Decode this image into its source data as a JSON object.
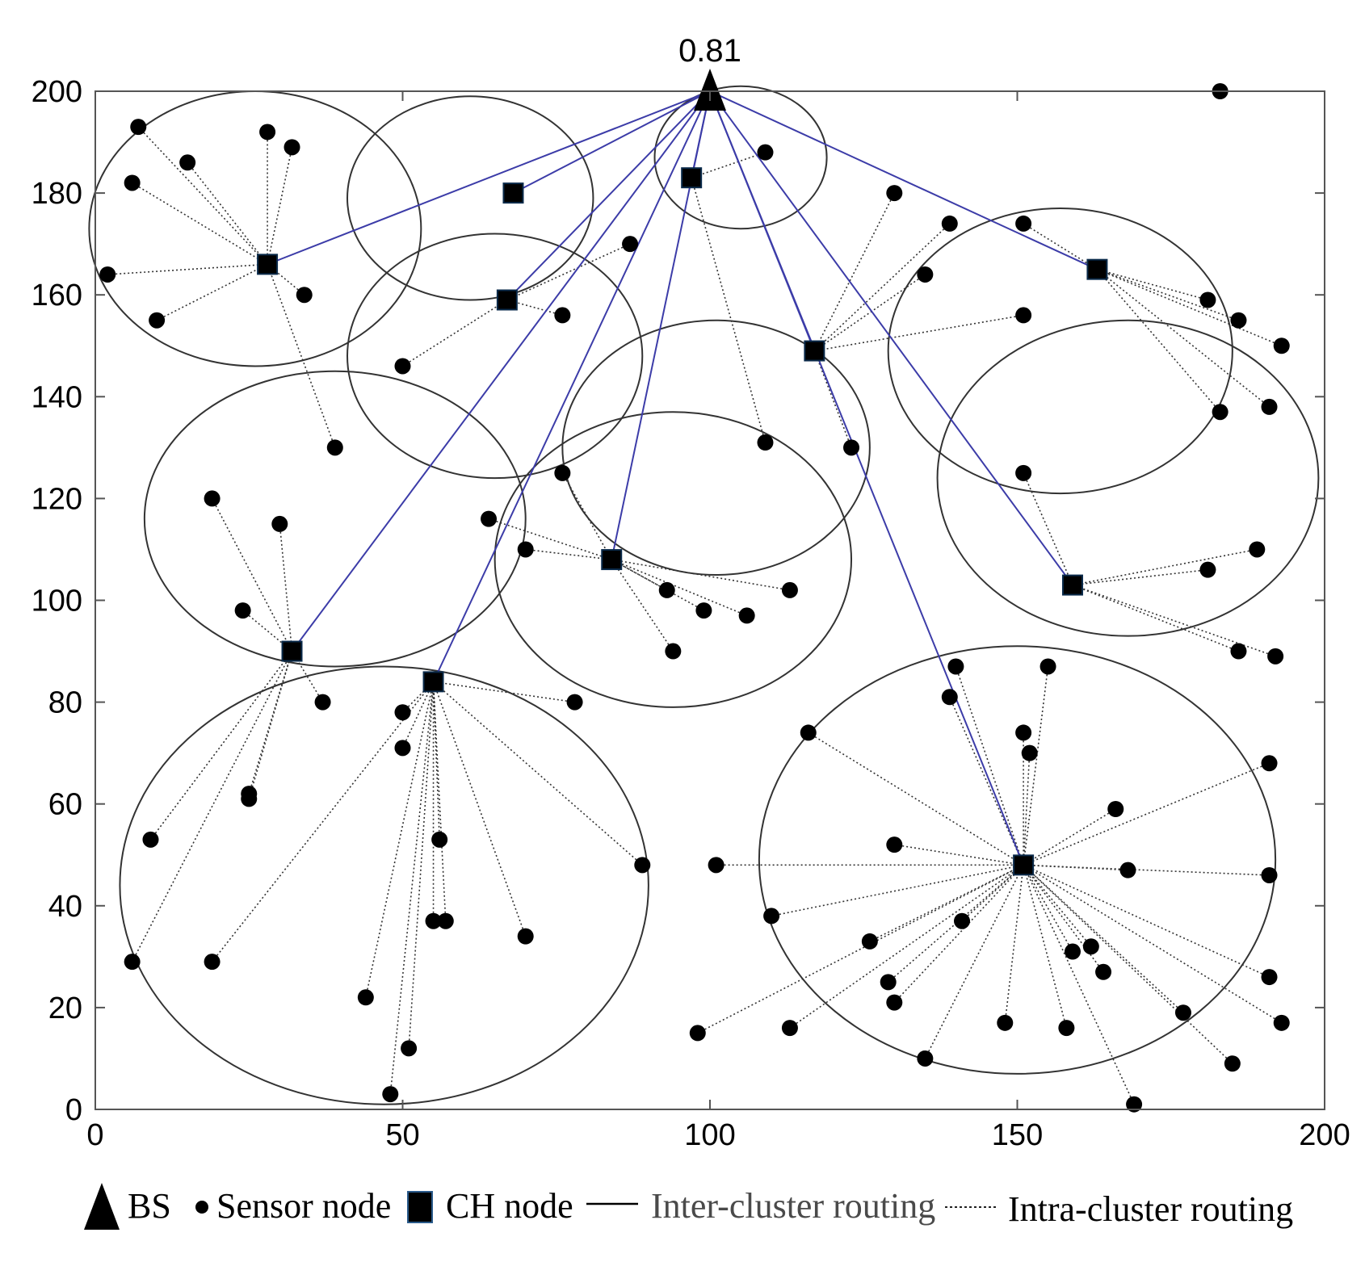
{
  "chart_data": {
    "type": "scatter",
    "title": "",
    "xlabel": "",
    "ylabel": "",
    "xlim": [
      0,
      200
    ],
    "ylim": [
      0,
      200
    ],
    "xticks": [
      "0",
      "50",
      "100",
      "150",
      "200"
    ],
    "yticks": [
      "0",
      "20",
      "40",
      "60",
      "80",
      "100",
      "120",
      "140",
      "160",
      "180",
      "200"
    ],
    "grid": false,
    "base_station": {
      "x": 100,
      "y": 200,
      "label": "0.81"
    },
    "cluster_heads": [
      {
        "x": 28,
        "y": 166
      },
      {
        "x": 68,
        "y": 180
      },
      {
        "x": 67,
        "y": 159
      },
      {
        "x": 97,
        "y": 183
      },
      {
        "x": 32,
        "y": 90
      },
      {
        "x": 55,
        "y": 84
      },
      {
        "x": 84,
        "y": 108
      },
      {
        "x": 117,
        "y": 149
      },
      {
        "x": 163,
        "y": 165
      },
      {
        "x": 159,
        "y": 103
      },
      {
        "x": 151,
        "y": 48
      }
    ],
    "clusters": [
      {
        "cx": 26,
        "cy": 173,
        "rx": 27,
        "ry": 27
      },
      {
        "cx": 61,
        "cy": 179,
        "rx": 20,
        "ry": 20
      },
      {
        "cx": 65,
        "cy": 148,
        "rx": 24,
        "ry": 24
      },
      {
        "cx": 105,
        "cy": 187,
        "rx": 14,
        "ry": 14
      },
      {
        "cx": 39,
        "cy": 116,
        "rx": 31,
        "ry": 29
      },
      {
        "cx": 101,
        "cy": 130,
        "rx": 25,
        "ry": 25
      },
      {
        "cx": 94,
        "cy": 108,
        "rx": 29,
        "ry": 29
      },
      {
        "cx": 157,
        "cy": 149,
        "rx": 28,
        "ry": 28
      },
      {
        "cx": 168,
        "cy": 124,
        "rx": 31,
        "ry": 31
      },
      {
        "cx": 47,
        "cy": 44,
        "rx": 43,
        "ry": 43
      },
      {
        "cx": 150,
        "cy": 49,
        "rx": 42,
        "ry": 42
      }
    ],
    "sensor_nodes": [
      {
        "x": 7,
        "y": 193,
        "ch": 0
      },
      {
        "x": 28,
        "y": 192,
        "ch": 0
      },
      {
        "x": 32,
        "y": 189,
        "ch": 0
      },
      {
        "x": 15,
        "y": 186,
        "ch": 0
      },
      {
        "x": 6,
        "y": 182,
        "ch": 0
      },
      {
        "x": 2,
        "y": 164,
        "ch": 0
      },
      {
        "x": 34,
        "y": 160,
        "ch": 0
      },
      {
        "x": 10,
        "y": 155,
        "ch": 0
      },
      {
        "x": 39,
        "y": 130,
        "ch": 0
      },
      {
        "x": 87,
        "y": 170,
        "ch": 2
      },
      {
        "x": 76,
        "y": 156,
        "ch": 2
      },
      {
        "x": 50,
        "y": 146,
        "ch": 2
      },
      {
        "x": 109,
        "y": 188,
        "ch": 3
      },
      {
        "x": 109,
        "y": 131,
        "ch": 3
      },
      {
        "x": 19,
        "y": 120,
        "ch": 4
      },
      {
        "x": 30,
        "y": 115,
        "ch": 4
      },
      {
        "x": 24,
        "y": 98,
        "ch": 4
      },
      {
        "x": 37,
        "y": 80,
        "ch": 4
      },
      {
        "x": 25,
        "y": 62,
        "ch": 4
      },
      {
        "x": 25,
        "y": 61,
        "ch": 4
      },
      {
        "x": 9,
        "y": 53,
        "ch": 4
      },
      {
        "x": 6,
        "y": 29,
        "ch": 4
      },
      {
        "x": 50,
        "y": 78,
        "ch": 5
      },
      {
        "x": 50,
        "y": 71,
        "ch": 5
      },
      {
        "x": 56,
        "y": 53,
        "ch": 5
      },
      {
        "x": 55,
        "y": 37,
        "ch": 5
      },
      {
        "x": 57,
        "y": 37,
        "ch": 5
      },
      {
        "x": 44,
        "y": 22,
        "ch": 5
      },
      {
        "x": 51,
        "y": 12,
        "ch": 5
      },
      {
        "x": 48,
        "y": 3,
        "ch": 5
      },
      {
        "x": 70,
        "y": 34,
        "ch": 5
      },
      {
        "x": 89,
        "y": 48,
        "ch": 5
      },
      {
        "x": 78,
        "y": 80,
        "ch": 5
      },
      {
        "x": 19,
        "y": 29,
        "ch": 5
      },
      {
        "x": 64,
        "y": 116,
        "ch": 6
      },
      {
        "x": 70,
        "y": 110,
        "ch": 6
      },
      {
        "x": 76,
        "y": 125,
        "ch": 6
      },
      {
        "x": 93,
        "y": 102,
        "ch": 6
      },
      {
        "x": 99,
        "y": 98,
        "ch": 6
      },
      {
        "x": 106,
        "y": 97,
        "ch": 6
      },
      {
        "x": 113,
        "y": 102,
        "ch": 6
      },
      {
        "x": 94,
        "y": 90,
        "ch": 6
      },
      {
        "x": 130,
        "y": 180,
        "ch": 7
      },
      {
        "x": 139,
        "y": 174,
        "ch": 7
      },
      {
        "x": 135,
        "y": 164,
        "ch": 7
      },
      {
        "x": 151,
        "y": 156,
        "ch": 7
      },
      {
        "x": 123,
        "y": 130,
        "ch": 7
      },
      {
        "x": 183,
        "y": 200,
        "ch": -1
      },
      {
        "x": 151,
        "y": 174,
        "ch": 8
      },
      {
        "x": 181,
        "y": 159,
        "ch": 8
      },
      {
        "x": 186,
        "y": 155,
        "ch": 8
      },
      {
        "x": 193,
        "y": 150,
        "ch": 8
      },
      {
        "x": 183,
        "y": 137,
        "ch": 8
      },
      {
        "x": 191,
        "y": 138,
        "ch": 8
      },
      {
        "x": 151,
        "y": 125,
        "ch": 9
      },
      {
        "x": 189,
        "y": 110,
        "ch": 9
      },
      {
        "x": 181,
        "y": 106,
        "ch": 9
      },
      {
        "x": 186,
        "y": 90,
        "ch": 9
      },
      {
        "x": 192,
        "y": 89,
        "ch": 9
      },
      {
        "x": 140,
        "y": 87,
        "ch": 10
      },
      {
        "x": 155,
        "y": 87,
        "ch": 10
      },
      {
        "x": 139,
        "y": 81,
        "ch": 10
      },
      {
        "x": 116,
        "y": 74,
        "ch": 10
      },
      {
        "x": 151,
        "y": 74,
        "ch": 10
      },
      {
        "x": 152,
        "y": 70,
        "ch": 10
      },
      {
        "x": 191,
        "y": 68,
        "ch": 10
      },
      {
        "x": 166,
        "y": 59,
        "ch": 10
      },
      {
        "x": 130,
        "y": 52,
        "ch": 10
      },
      {
        "x": 101,
        "y": 48,
        "ch": 10
      },
      {
        "x": 168,
        "y": 47,
        "ch": 10
      },
      {
        "x": 191,
        "y": 46,
        "ch": 10
      },
      {
        "x": 110,
        "y": 38,
        "ch": 10
      },
      {
        "x": 141,
        "y": 37,
        "ch": 10
      },
      {
        "x": 126,
        "y": 33,
        "ch": 10
      },
      {
        "x": 162,
        "y": 32,
        "ch": 10
      },
      {
        "x": 159,
        "y": 31,
        "ch": 10
      },
      {
        "x": 164,
        "y": 27,
        "ch": 10
      },
      {
        "x": 191,
        "y": 26,
        "ch": 10
      },
      {
        "x": 129,
        "y": 25,
        "ch": 10
      },
      {
        "x": 130,
        "y": 21,
        "ch": 10
      },
      {
        "x": 177,
        "y": 19,
        "ch": 10
      },
      {
        "x": 113,
        "y": 16,
        "ch": 10
      },
      {
        "x": 148,
        "y": 17,
        "ch": 10
      },
      {
        "x": 158,
        "y": 16,
        "ch": 10
      },
      {
        "x": 193,
        "y": 17,
        "ch": 10
      },
      {
        "x": 98,
        "y": 15,
        "ch": 10
      },
      {
        "x": 135,
        "y": 10,
        "ch": 10
      },
      {
        "x": 185,
        "y": 9,
        "ch": 10
      },
      {
        "x": 169,
        "y": 1,
        "ch": 10
      }
    ],
    "legend": {
      "placement": "bottom",
      "entries": [
        {
          "symbol": "triangle",
          "label": "BS"
        },
        {
          "symbol": "dot",
          "label": "Sensor node"
        },
        {
          "symbol": "square",
          "label": "CH node"
        },
        {
          "symbol": "solid-line",
          "label": "Inter-cluster routing"
        },
        {
          "symbol": "dashed-line",
          "label": "Intra-cluster routing"
        }
      ]
    },
    "colors": {
      "inter_cluster_line": "#3c3ca8",
      "intra_cluster_line": "#333333",
      "cluster_circle": "#333333",
      "marker": "#000000",
      "axis": "#555555"
    }
  }
}
